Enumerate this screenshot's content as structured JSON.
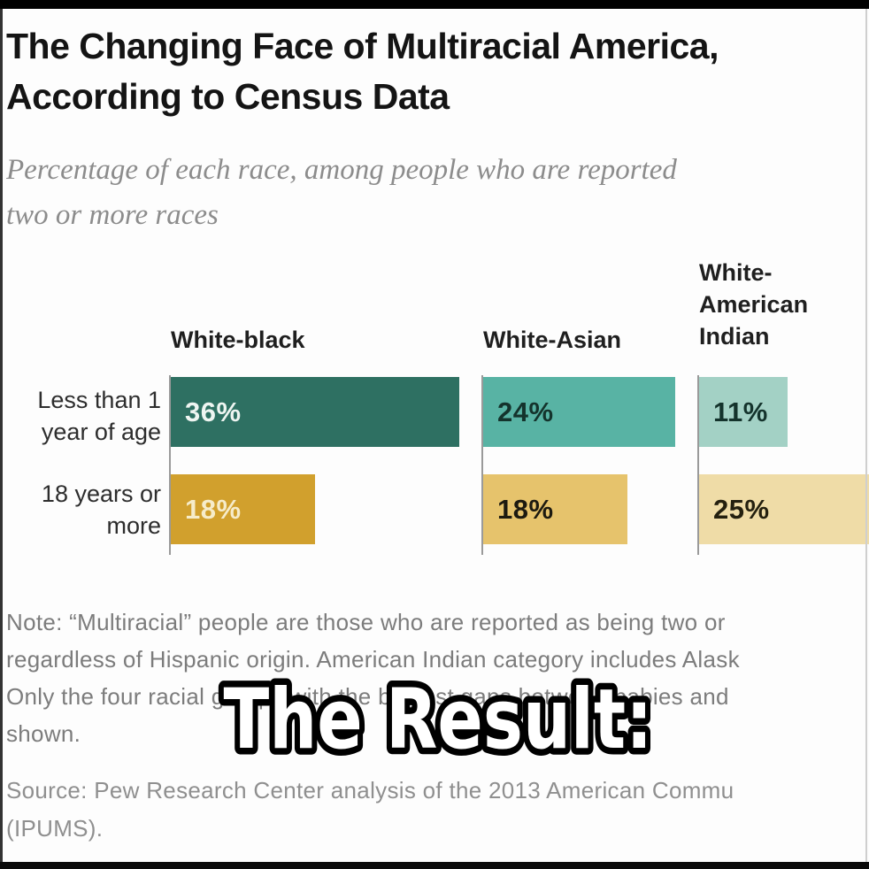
{
  "frame": {
    "top_bar_color": "#000000",
    "bottom_bar_color": "#0a0a0a",
    "left_edge_color": "#333333",
    "right_edge_color": "#cfcfcf"
  },
  "header": {
    "title_line1": "The Changing Face of Multiracial America,",
    "title_line2": "According to Census Data",
    "subtitle_line1": "Percentage of each race, among people who are reported",
    "subtitle_line2": "two or more races"
  },
  "chart_data": {
    "type": "bar",
    "orientation": "horizontal",
    "unit": "%",
    "categories": [
      "Less than 1 year of age",
      "18 years or more"
    ],
    "category_display_lines": [
      [
        "Less than 1",
        "year of age"
      ],
      [
        "18 years or",
        "more"
      ]
    ],
    "series": [
      {
        "name": "White-black",
        "header_lines": [
          "White-black"
        ],
        "values": [
          36,
          18
        ],
        "bar_colors": [
          "#2e7062",
          "#d1a02d"
        ],
        "label_colors": [
          "#eef5f1",
          "#f6ecca"
        ]
      },
      {
        "name": "White-Asian",
        "header_lines": [
          "White-Asian"
        ],
        "values": [
          24,
          18
        ],
        "bar_colors": [
          "#58b3a4",
          "#e6c36c"
        ],
        "label_colors": [
          "#14332c",
          "#1d1a10"
        ]
      },
      {
        "name": "White-American Indian",
        "header_lines": [
          "White-",
          "American",
          "Indian"
        ],
        "values": [
          11,
          25
        ],
        "bar_colors": [
          "#a3d1c5",
          "#efdca7"
        ],
        "label_colors": [
          "#14332c",
          "#24200f"
        ]
      }
    ],
    "display_values": [
      [
        "36%",
        "18%"
      ],
      [
        "24%",
        "18%"
      ],
      [
        "11%",
        "25%"
      ]
    ],
    "xlim": [
      0,
      36
    ],
    "grid": false,
    "axis_line_color": "#9a9a9a",
    "legend": "column headers above each bar group"
  },
  "note": {
    "line1": "Note: “Multiracial” people are those who are reported as being two or",
    "line2": "regardless of Hispanic origin. American Indian category includes Alask",
    "line3": "Only the four racial groups with the biggest gaps between babies and",
    "line4": "shown."
  },
  "source": {
    "line1": "Source: Pew Research Center analysis of the 2013 American Commu",
    "line2": "(IPUMS)."
  },
  "overlay": {
    "text": "The Result:",
    "fill": "#ffffff",
    "outline": "#000000"
  }
}
